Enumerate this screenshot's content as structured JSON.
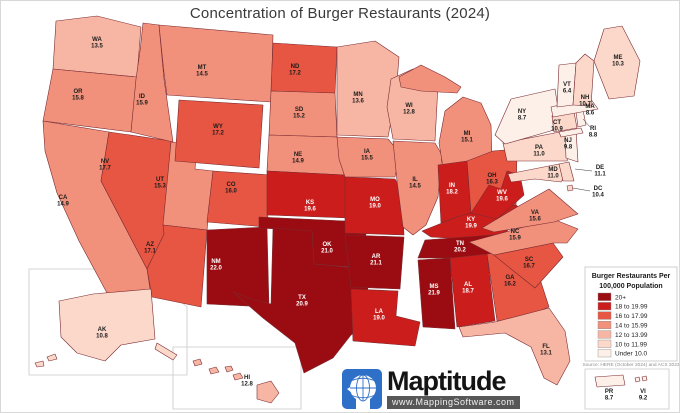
{
  "title": "Concentration of Burger Restaurants (2024)",
  "legend": {
    "title_line1": "Burger Restaurants Per",
    "title_line2": "100,000 Population",
    "classes": [
      {
        "label": "20+",
        "color": "#9b0c12"
      },
      {
        "label": "18 to 19.99",
        "color": "#cb1e1c"
      },
      {
        "label": "16 to 17.99",
        "color": "#e75643"
      },
      {
        "label": "14 to 15.99",
        "color": "#f1917c"
      },
      {
        "label": "12 to 13.99",
        "color": "#f7b6a4"
      },
      {
        "label": "10 to 11.99",
        "color": "#fbd8ca"
      },
      {
        "label": "Under 10.0",
        "color": "#fdf0e9"
      }
    ]
  },
  "source": "Source: HERE (October 2024) and ACS 2023",
  "branding": {
    "name": "Maptitude",
    "url": "www.MappingSoftware.com",
    "accent_blue": "#2e6fc7"
  },
  "states": [
    {
      "abbr": "WA",
      "value": "13.5"
    },
    {
      "abbr": "OR",
      "value": "15.8"
    },
    {
      "abbr": "CA",
      "value": "14.9"
    },
    {
      "abbr": "NV",
      "value": "17.7"
    },
    {
      "abbr": "ID",
      "value": "15.9"
    },
    {
      "abbr": "UT",
      "value": "15.3"
    },
    {
      "abbr": "AZ",
      "value": "17.1"
    },
    {
      "abbr": "MT",
      "value": "14.5"
    },
    {
      "abbr": "WY",
      "value": "17.2"
    },
    {
      "abbr": "CO",
      "value": "16.0"
    },
    {
      "abbr": "NM",
      "value": "22.0"
    },
    {
      "abbr": "ND",
      "value": "17.2"
    },
    {
      "abbr": "SD",
      "value": "15.2"
    },
    {
      "abbr": "NE",
      "value": "14.9"
    },
    {
      "abbr": "KS",
      "value": "19.6"
    },
    {
      "abbr": "OK",
      "value": "21.0"
    },
    {
      "abbr": "TX",
      "value": "20.9"
    },
    {
      "abbr": "MN",
      "value": "13.6"
    },
    {
      "abbr": "IA",
      "value": "15.5"
    },
    {
      "abbr": "MO",
      "value": "19.0"
    },
    {
      "abbr": "AR",
      "value": "21.1"
    },
    {
      "abbr": "LA",
      "value": "19.0"
    },
    {
      "abbr": "WI",
      "value": "12.8"
    },
    {
      "abbr": "IL",
      "value": "14.5"
    },
    {
      "abbr": "MI",
      "value": "15.1"
    },
    {
      "abbr": "IN",
      "value": "18.2"
    },
    {
      "abbr": "OH",
      "value": "16.3"
    },
    {
      "abbr": "KY",
      "value": "19.9"
    },
    {
      "abbr": "TN",
      "value": "20.2"
    },
    {
      "abbr": "MS",
      "value": "21.9"
    },
    {
      "abbr": "AL",
      "value": "18.7"
    },
    {
      "abbr": "GA",
      "value": "16.2"
    },
    {
      "abbr": "FL",
      "value": "13.1"
    },
    {
      "abbr": "SC",
      "value": "16.7"
    },
    {
      "abbr": "NC",
      "value": "15.9"
    },
    {
      "abbr": "VA",
      "value": "15.6"
    },
    {
      "abbr": "WV",
      "value": "19.6"
    },
    {
      "abbr": "MD",
      "value": "11.0"
    },
    {
      "abbr": "DE",
      "value": "11.1"
    },
    {
      "abbr": "DC",
      "value": "10.4"
    },
    {
      "abbr": "PA",
      "value": "11.0"
    },
    {
      "abbr": "NY",
      "value": "8.7"
    },
    {
      "abbr": "NJ",
      "value": "9.8"
    },
    {
      "abbr": "CT",
      "value": "10.9"
    },
    {
      "abbr": "RI",
      "value": "8.8"
    },
    {
      "abbr": "MA",
      "value": "8.6"
    },
    {
      "abbr": "VT",
      "value": "6.4"
    },
    {
      "abbr": "NH",
      "value": "10.7"
    },
    {
      "abbr": "ME",
      "value": "10.3"
    },
    {
      "abbr": "AK",
      "value": "10.8"
    },
    {
      "abbr": "HI",
      "value": "12.8"
    },
    {
      "abbr": "PR",
      "value": "8.7"
    },
    {
      "abbr": "VI",
      "value": "9.2"
    }
  ]
}
